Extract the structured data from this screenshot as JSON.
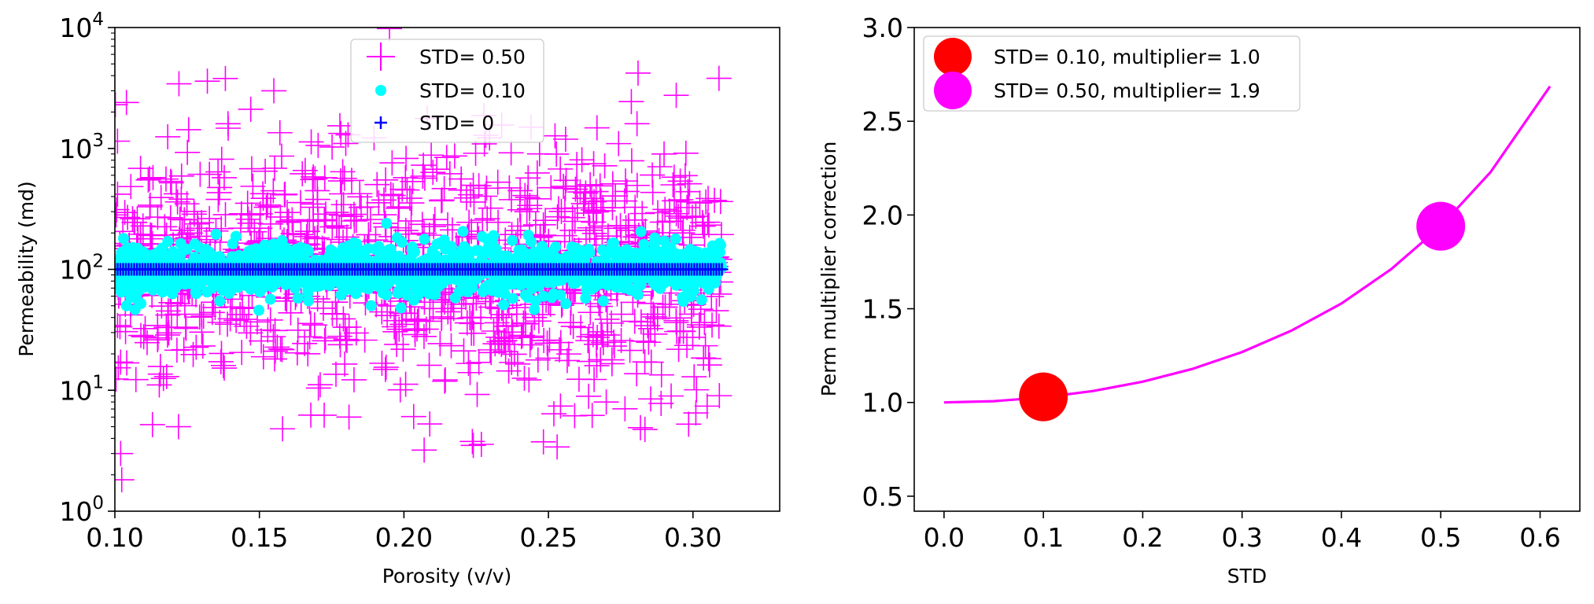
{
  "chart_data": [
    {
      "type": "scatter",
      "xlabel": "Porosity (v/v)",
      "ylabel": "Permeability (md)",
      "xlim": [
        0.1,
        0.33
      ],
      "ylim": [
        1,
        10000
      ],
      "yscale": "log",
      "xticks": [
        "0.10",
        "0.15",
        "0.20",
        "0.25",
        "0.30"
      ],
      "yticks": [
        {
          "base": "10",
          "exp": "0"
        },
        {
          "base": "10",
          "exp": "1"
        },
        {
          "base": "10",
          "exp": "2"
        },
        {
          "base": "10",
          "exp": "3"
        },
        {
          "base": "10",
          "exp": "4"
        }
      ],
      "legend_position": "upper center",
      "grid": false,
      "porosity_range": [
        0.1,
        0.31
      ],
      "median_permeability": 100,
      "series": [
        {
          "name": "STD= 0.50",
          "marker": "plus-large",
          "color": "#ff00ff",
          "log10_std": 0.5,
          "points": [
            [
              0.104,
              2400
            ],
            [
              0.132,
              3600
            ],
            [
              0.155,
              3000
            ],
            [
              0.281,
              4200
            ],
            [
              0.309,
              3800
            ],
            [
              0.195,
              9800
            ],
            [
              0.102,
              3
            ],
            [
              0.122,
              5
            ],
            [
              0.207,
              3.2
            ],
            [
              0.224,
              3.5
            ],
            [
              0.253,
              3.4
            ],
            [
              0.158,
              4.8
            ],
            [
              0.181,
              6
            ],
            [
              0.301,
              6.5
            ],
            [
              0.113,
              5.2
            ],
            [
              0.27,
              8
            ],
            [
              0.244,
              1500
            ],
            [
              0.29,
              900
            ]
          ]
        },
        {
          "name": "STD= 0.10",
          "marker": "circle",
          "color": "#00ffff",
          "log10_std": 0.1,
          "points": [
            [
              0.103,
              180
            ],
            [
              0.135,
              195
            ],
            [
              0.194,
              240
            ],
            [
              0.231,
              190
            ],
            [
              0.282,
              205
            ],
            [
              0.104,
              50
            ],
            [
              0.167,
              55
            ],
            [
              0.199,
              48
            ],
            [
              0.256,
              52
            ],
            [
              0.303,
              56
            ]
          ]
        },
        {
          "name": "STD= 0",
          "marker": "plus-small",
          "color": "#0000ff",
          "log10_std": 0,
          "points": [
            [
              0.1,
              100
            ],
            [
              0.31,
              100
            ]
          ]
        }
      ]
    },
    {
      "type": "line",
      "xlabel": "STD",
      "ylabel": "Perm multiplier correction",
      "xlim": [
        -0.03,
        0.64
      ],
      "ylim": [
        0.42,
        3.0
      ],
      "xticks": [
        "0.0",
        "0.1",
        "0.2",
        "0.3",
        "0.4",
        "0.5",
        "0.6"
      ],
      "yticks": [
        "0.5",
        "1.0",
        "1.5",
        "2.0",
        "2.5",
        "3.0"
      ],
      "legend_position": "upper left",
      "grid": false,
      "series": [
        {
          "name": "",
          "color": "#ff00ff",
          "x": [
            0.0,
            0.05,
            0.1,
            0.15,
            0.2,
            0.25,
            0.3,
            0.35,
            0.4,
            0.45,
            0.5,
            0.55,
            0.61
          ],
          "y": [
            1.0,
            1.007,
            1.027,
            1.061,
            1.111,
            1.179,
            1.269,
            1.384,
            1.528,
            1.711,
            1.94,
            2.228,
            2.686
          ]
        },
        {
          "name": "STD= 0.10, multiplier= 1.0",
          "marker": "circle",
          "color": "#ff0000",
          "x": [
            0.1
          ],
          "y": [
            1.03
          ]
        },
        {
          "name": "STD= 0.50, multiplier= 1.9",
          "marker": "circle",
          "color": "#ff00ff",
          "x": [
            0.5
          ],
          "y": [
            1.94
          ]
        }
      ]
    }
  ]
}
